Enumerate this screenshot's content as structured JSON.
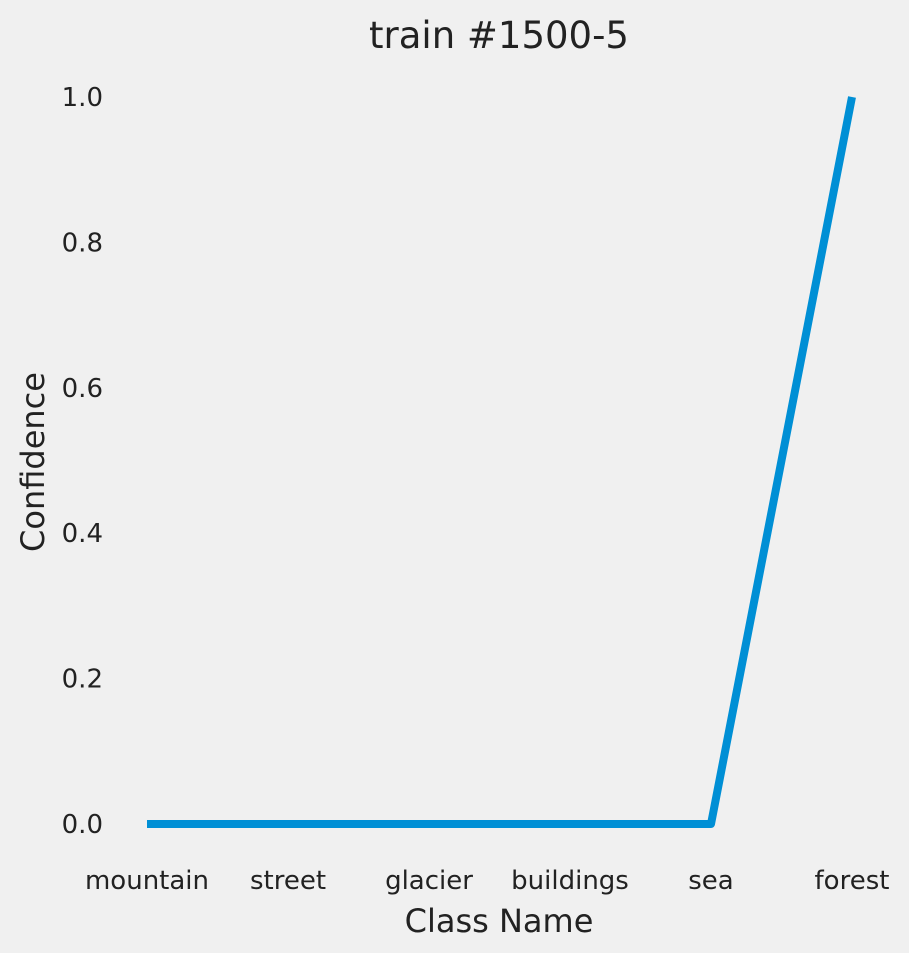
{
  "chart_data": {
    "type": "line",
    "title": "train #1500-5",
    "xlabel": "Class Name",
    "ylabel": "Confidence",
    "categories": [
      "mountain",
      "street",
      "glacier",
      "buildings",
      "sea",
      "forest"
    ],
    "series": [
      {
        "values": [
          0.0,
          0.0,
          0.0,
          0.0,
          0.0,
          1.0
        ],
        "color": "#008fd5"
      }
    ],
    "yticks": [
      "0.0",
      "0.2",
      "0.4",
      "0.6",
      "0.8",
      "1.0"
    ],
    "ylim": [
      0.0,
      1.0
    ],
    "grid": false,
    "legend": "none"
  }
}
